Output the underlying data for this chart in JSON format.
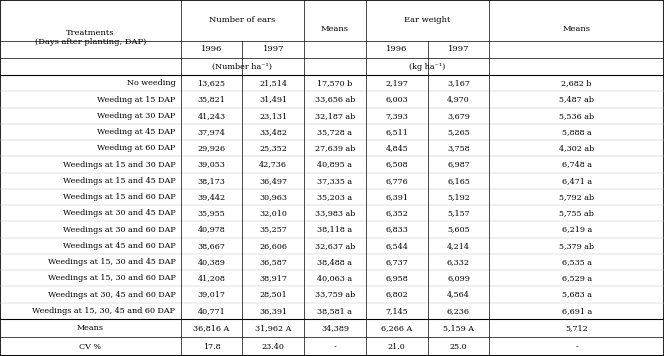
{
  "subheader_number": "(Number ha⁻¹)",
  "subheader_weight": "(kg ha⁻¹)",
  "rows": [
    [
      "No weeding",
      "13,625",
      "21,514",
      "17,570 b",
      "2,197",
      "3,167",
      "2,682 b"
    ],
    [
      "Weeding at 15 DAP",
      "35,821",
      "31,491",
      "33,656 ab",
      "6,003",
      "4,970",
      "5,487 ab"
    ],
    [
      "Weeding at 30 DAP",
      "41,243",
      "23,131",
      "32,187 ab",
      "7,393",
      "3,679",
      "5,536 ab"
    ],
    [
      "Weeding at 45 DAP",
      "37,974",
      "33,482",
      "35,728 a",
      "6,511",
      "5,265",
      "5,888 a"
    ],
    [
      "Weeding at 60 DAP",
      "29,926",
      "25,352",
      "27,639 ab",
      "4,845",
      "3,758",
      "4,302 ab"
    ],
    [
      "Weedings at 15 and 30 DAP",
      "39,053",
      "42,736",
      "40,895 a",
      "6,508",
      "6,987",
      "6,748 a"
    ],
    [
      "Weedings at 15 and 45 DAP",
      "38,173",
      "36,497",
      "37,335 a",
      "6,776",
      "6,165",
      "6,471 a"
    ],
    [
      "Weedings at 15 and 60 DAP",
      "39,442",
      "30,963",
      "35,203 a",
      "6,391",
      "5,192",
      "5,792 ab"
    ],
    [
      "Weedings at 30 and 45 DAP",
      "35,955",
      "32,010",
      "33,983 ab",
      "6,352",
      "5,157",
      "5,755 ab"
    ],
    [
      "Weedings at 30 and 60 DAP",
      "40,978",
      "35,257",
      "38,118 a",
      "6,833",
      "5,605",
      "6,219 a"
    ],
    [
      "Weedings at 45 and 60 DAP",
      "38,667",
      "26,606",
      "32,637 ab",
      "6,544",
      "4,214",
      "5,379 ab"
    ],
    [
      "Weedings at 15, 30 and 45 DAP",
      "40,389",
      "36,587",
      "38,488 a",
      "6,737",
      "6,332",
      "6,535 a"
    ],
    [
      "Weedings at 15, 30 and 60 DAP",
      "41,208",
      "38,917",
      "40,063 a",
      "6,958",
      "6,099",
      "6,529 a"
    ],
    [
      "Weedings at 30, 45 and 60 DAP",
      "39,017",
      "28,501",
      "33,759 ab",
      "6,802",
      "4,564",
      "5,683 a"
    ],
    [
      "Weedings at 15, 30, 45 and 60 DAP",
      "40,771",
      "36,391",
      "38,581 a",
      "7,145",
      "6,236",
      "6,691 a"
    ]
  ],
  "means_row": [
    "Means",
    "36,816 A",
    "31,962 A",
    "34,389",
    "6,266 A",
    "5,159 A",
    "5,712"
  ],
  "cv_row": [
    "CV %",
    "17.8",
    "23.40",
    "-",
    "21.0",
    "25.0",
    "-"
  ],
  "col_bounds": [
    0.0,
    0.272,
    0.365,
    0.458,
    0.551,
    0.644,
    0.737,
    1.0
  ],
  "fs_data": 5.8,
  "fs_header": 6.0
}
